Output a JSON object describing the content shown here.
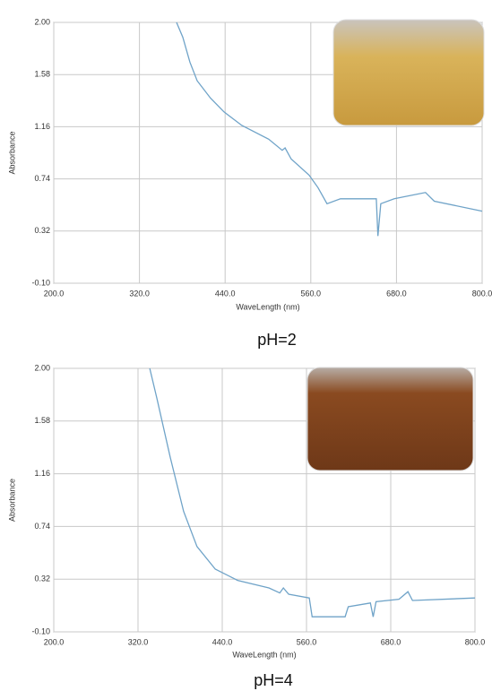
{
  "chart_data": [
    {
      "type": "line",
      "caption": "pH=2",
      "xlabel": "WaveLength (nm)",
      "ylabel": "Absorbance",
      "x": [
        372,
        380.7,
        390.7,
        400.8,
        419.6,
        438.4,
        463.5,
        501,
        520,
        524,
        532.5,
        557.6,
        570,
        582.7,
        601.5,
        639,
        651.7,
        654,
        658,
        676.8,
        720.7,
        733,
        800
      ],
      "series": [
        {
          "color": "#6fa3c8",
          "values": [
            2.0,
            1.88,
            1.68,
            1.53,
            1.39,
            1.28,
            1.17,
            1.06,
            0.97,
            0.99,
            0.9,
            0.77,
            0.67,
            0.54,
            0.58,
            0.58,
            0.58,
            0.28,
            0.54,
            0.58,
            0.63,
            0.56,
            0.48
          ]
        }
      ],
      "xlim": [
        200,
        800
      ],
      "ylim": [
        -0.1,
        2.0
      ],
      "xticks": [
        {
          "value": 200,
          "label": "200.0"
        },
        {
          "value": 320,
          "label": "320.0"
        },
        {
          "value": 440,
          "label": "440.0"
        },
        {
          "value": 560,
          "label": "560.0"
        },
        {
          "value": 680,
          "label": "680.0"
        },
        {
          "value": 800,
          "label": "800.0"
        }
      ],
      "yticks": [
        {
          "value": -0.1,
          "label": "-0.10"
        },
        {
          "value": 0.32,
          "label": "0.32"
        },
        {
          "value": 0.74,
          "label": "0.74"
        },
        {
          "value": 1.16,
          "label": "1.16"
        },
        {
          "value": 1.58,
          "label": "1.58"
        },
        {
          "value": 2.0,
          "label": "2.00"
        }
      ],
      "grid": true
    },
    {
      "type": "line",
      "caption": "pH=4",
      "xlabel": "WaveLength (nm)",
      "ylabel": "Absorbance",
      "x": [
        336.7,
        347,
        366,
        385,
        404,
        430,
        462,
        506.5,
        522,
        527,
        534.6,
        564,
        568,
        615,
        619.5,
        651,
        655,
        659,
        691.7,
        704.5,
        711,
        800
      ],
      "series": [
        {
          "color": "#6fa3c8",
          "values": [
            2.0,
            1.76,
            1.29,
            0.86,
            0.58,
            0.4,
            0.31,
            0.25,
            0.21,
            0.25,
            0.2,
            0.17,
            0.02,
            0.02,
            0.1,
            0.13,
            0.02,
            0.14,
            0.16,
            0.22,
            0.15,
            0.17
          ]
        }
      ],
      "xlim": [
        200,
        800
      ],
      "ylim": [
        -0.1,
        2.0
      ],
      "xticks": [
        {
          "value": 200,
          "label": "200.0"
        },
        {
          "value": 320,
          "label": "320.0"
        },
        {
          "value": 440,
          "label": "440.0"
        },
        {
          "value": 560,
          "label": "560.0"
        },
        {
          "value": 680,
          "label": "680.0"
        },
        {
          "value": 800,
          "label": "800.0"
        }
      ],
      "yticks": [
        {
          "value": -0.1,
          "label": "-0.10"
        },
        {
          "value": 0.32,
          "label": "0.32"
        },
        {
          "value": 0.74,
          "label": "0.74"
        },
        {
          "value": 1.16,
          "label": "1.16"
        },
        {
          "value": 1.58,
          "label": "1.58"
        },
        {
          "value": 2.0,
          "label": "2.00"
        }
      ],
      "grid": true
    }
  ]
}
